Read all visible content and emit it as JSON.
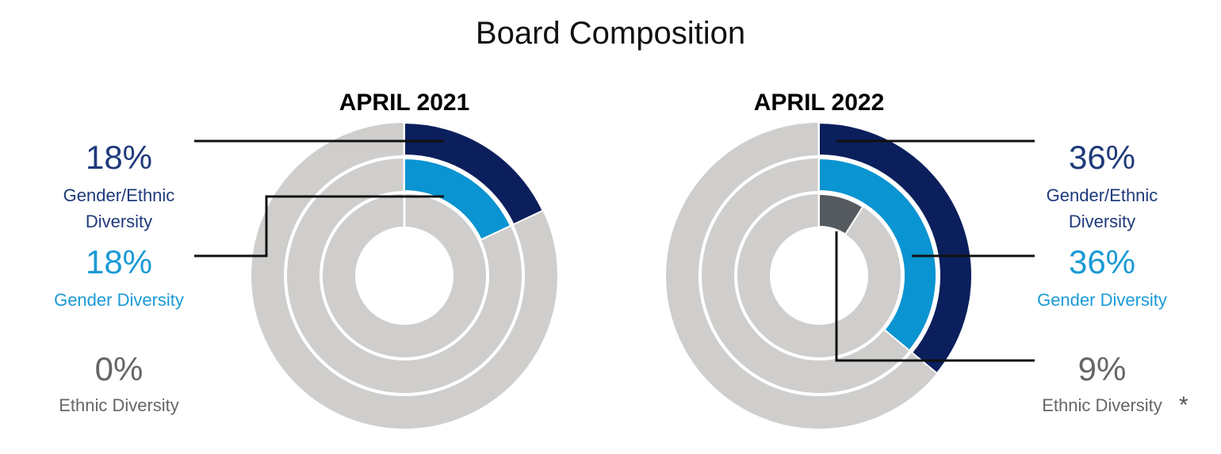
{
  "title": "Board Composition",
  "chart_data": [
    {
      "type": "donut",
      "title": "APRIL 2021",
      "track_color": "#d0cecc",
      "series": [
        {
          "name": "Gender/Ethnic Diversity",
          "color": "#0b1f5c",
          "values": [
            18
          ],
          "value_labels": [
            "18%"
          ]
        },
        {
          "name": "Gender Diversity",
          "color": "#0a94d1",
          "values": [
            18
          ],
          "value_labels": [
            "18%"
          ]
        },
        {
          "name": "Ethnic Diversity",
          "color": "#555a5f",
          "values": [
            0
          ],
          "value_labels": [
            "0%"
          ]
        }
      ]
    },
    {
      "type": "donut",
      "title": "APRIL 2022",
      "track_color": "#d0cecc",
      "footnote_marker": "*",
      "series": [
        {
          "name": "Gender/Ethnic Diversity",
          "color": "#0b1f5c",
          "values": [
            36
          ],
          "value_labels": [
            "36%"
          ]
        },
        {
          "name": "Gender Diversity",
          "color": "#0a94d1",
          "values": [
            36
          ],
          "value_labels": [
            "36%"
          ]
        },
        {
          "name": "Ethnic Diversity",
          "color": "#555a5f",
          "values": [
            9
          ],
          "value_labels": [
            "9%"
          ]
        }
      ]
    }
  ]
}
